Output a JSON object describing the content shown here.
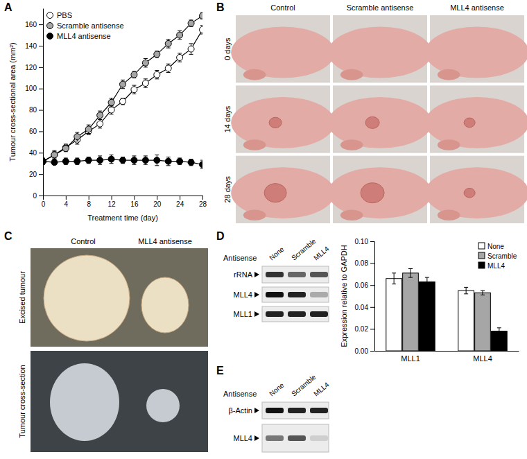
{
  "chart_data": [
    {
      "type": "line",
      "x": [
        0,
        2,
        4,
        6,
        8,
        10,
        12,
        14,
        16,
        18,
        20,
        22,
        24,
        26,
        28
      ],
      "series": [
        {
          "name": "PBS",
          "color": "#ffffff",
          "marker": "circle",
          "values": [
            32,
            38,
            45,
            52,
            60,
            67,
            80,
            88,
            99,
            105,
            113,
            119,
            129,
            137,
            155
          ],
          "errors": [
            2,
            3,
            3,
            4,
            3,
            4,
            4,
            3,
            4,
            4,
            4,
            4,
            4,
            5,
            4
          ]
        },
        {
          "name": "Scramble antisense",
          "color": "#a6a6a6",
          "marker": "circle",
          "values": [
            32,
            38,
            44,
            55,
            62,
            75,
            87,
            104,
            113,
            124,
            132,
            142,
            150,
            161,
            168
          ],
          "errors": [
            2,
            4,
            3,
            4,
            4,
            4,
            4,
            4,
            3,
            4,
            3,
            4,
            4,
            3,
            3
          ]
        },
        {
          "name": "MLL4 antisense",
          "color": "#000000",
          "marker": "circle",
          "values": [
            32,
            31,
            32,
            32,
            33,
            33,
            34,
            33,
            33,
            33,
            33,
            32,
            32,
            31,
            29
          ],
          "errors": [
            3,
            2,
            3,
            3,
            3,
            4,
            4,
            3,
            4,
            4,
            5,
            4,
            3,
            3,
            4
          ]
        }
      ],
      "xlim": [
        0,
        28
      ],
      "ylim": [
        0,
        175
      ],
      "xticks": [
        0,
        4,
        8,
        12,
        16,
        20,
        24,
        28
      ],
      "yticks": [
        0,
        20,
        40,
        60,
        80,
        100,
        120,
        140,
        160
      ],
      "x_label": "Treatment time (day)",
      "y_label": "Tumour cross-sectional area (mm²)",
      "legend": "upper-left"
    },
    {
      "type": "bar",
      "categories": [
        "MLL1",
        "MLL4"
      ],
      "series": [
        {
          "name": "None",
          "color": "#ffffff",
          "values": [
            0.066,
            0.055
          ],
          "errors": [
            0.005,
            0.003
          ]
        },
        {
          "name": "Scramble",
          "color": "#a6a6a6",
          "values": [
            0.071,
            0.053
          ],
          "errors": [
            0.004,
            0.002
          ]
        },
        {
          "name": "MLL4",
          "color": "#000000",
          "values": [
            0.063,
            0.018
          ],
          "errors": [
            0.004,
            0.003
          ]
        }
      ],
      "ylim": [
        0,
        0.1
      ],
      "yticks": [
        {
          "value": 0,
          "label": "0.00"
        },
        {
          "value": 0.02,
          "label": "0.02"
        },
        {
          "value": 0.04,
          "label": "0.04"
        },
        {
          "value": 0.06,
          "label": "0.06"
        },
        {
          "value": 0.08,
          "label": "0.08"
        },
        {
          "value": 0.1,
          "label": "0.10"
        }
      ],
      "y_label": "Expression relative to GAPDH",
      "legend": "upper-right"
    }
  ],
  "panel_labels": [
    "A",
    "B",
    "C",
    "D",
    "E"
  ],
  "photos_B": {
    "columns": [
      "Control",
      "Scramble antisense",
      "MLL4 antisense"
    ],
    "rows": [
      "0 days",
      "14 days",
      "28 days"
    ]
  },
  "photos_C": {
    "columns": [
      "Control",
      "MLL4 antisense"
    ],
    "rows": [
      "Excised tumour",
      "Tumour cross-section"
    ]
  },
  "blot_D": {
    "title": "Antisense",
    "lanes": [
      "None",
      "Scramble",
      "MLL4"
    ],
    "bands": [
      "rRNA",
      "MLL4",
      "MLL1"
    ]
  },
  "blot_E": {
    "title": "Antisense",
    "lanes": [
      "None",
      "Scramble",
      "MLL4"
    ],
    "bands": [
      "β-Actin",
      "MLL4"
    ]
  }
}
